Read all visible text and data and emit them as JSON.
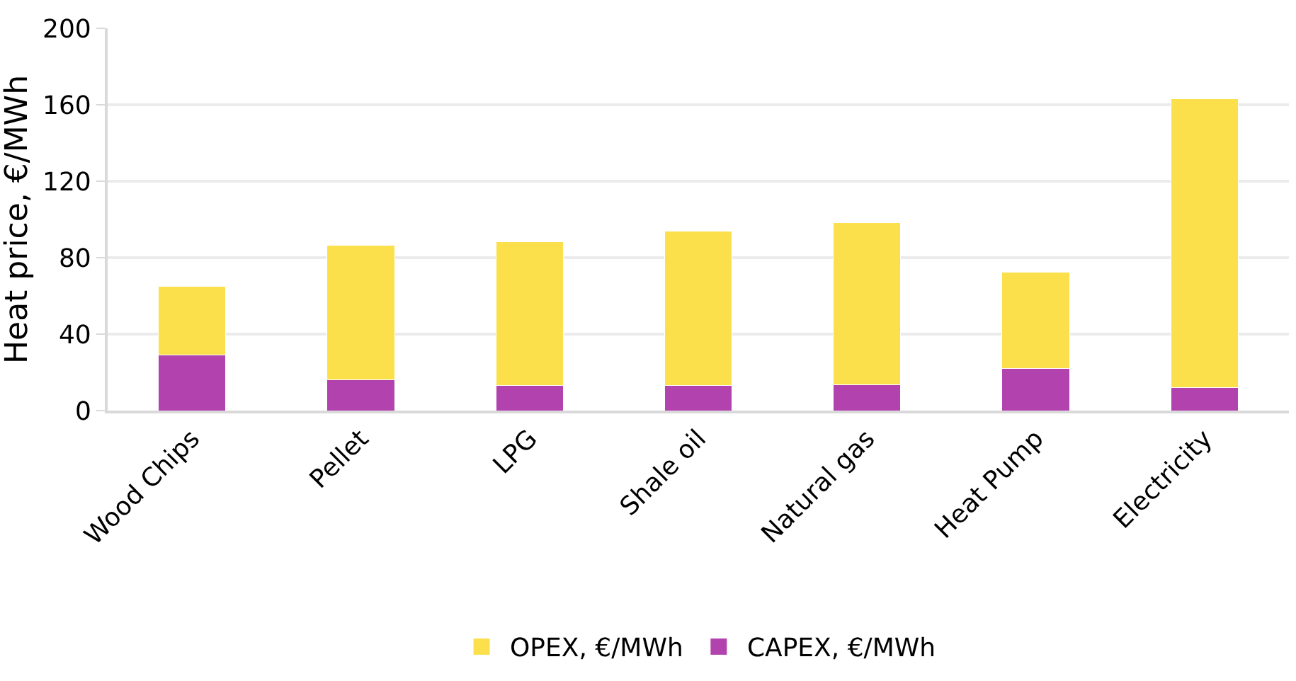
{
  "chart_data": {
    "type": "bar",
    "stacked": true,
    "ylabel": "Heat price, €/MWh",
    "categories": [
      "Wood Chips",
      "Pellet",
      "LPG",
      "Shale oil",
      "Natural gas",
      "Heat Pump",
      "Electricity"
    ],
    "series": [
      {
        "name": "CAPEX, €/MWh",
        "color": "#b243ae",
        "values": [
          29,
          16,
          13,
          13,
          13.5,
          22,
          12
        ]
      },
      {
        "name": "OPEX, €/MWh",
        "color": "#fbe04c",
        "values": [
          36,
          70.5,
          75.5,
          81,
          85,
          50.5,
          151
        ]
      }
    ],
    "ylim": [
      0,
      200
    ],
    "yticks": [
      0,
      40,
      80,
      120,
      160,
      200
    ],
    "grid": "y",
    "legend": "bottom"
  }
}
